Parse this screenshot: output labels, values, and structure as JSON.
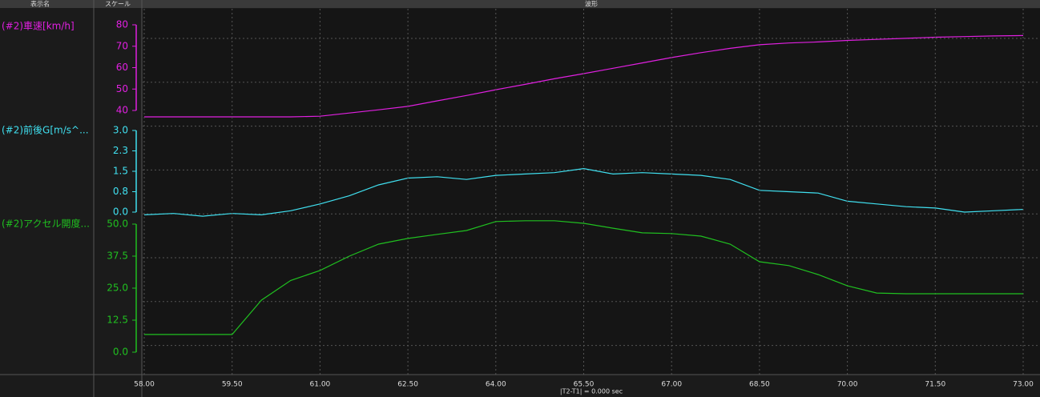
{
  "header": {
    "columns": [
      "表示名",
      "スケール",
      "波形"
    ]
  },
  "footer": {
    "delta": "|T2-T1| = 0.000  sec"
  },
  "chart_data": [
    {
      "type": "line",
      "x": [
        58,
        58.5,
        59,
        59.5,
        60,
        60.5,
        61,
        61.5,
        62,
        62.5,
        63,
        63.5,
        64,
        64.5,
        65,
        65.5,
        66,
        66.5,
        67,
        67.5,
        68,
        68.5,
        69,
        69.5,
        70,
        70.5,
        71,
        71.5,
        72,
        72.5,
        73
      ],
      "xlim": [
        58,
        73
      ],
      "series": [
        {
          "name": "(#2)車速[km/h]",
          "color": "#e020e0",
          "values": [
            37,
            37,
            37,
            37,
            37,
            37,
            37.3,
            38.8,
            40.3,
            41.9,
            44.5,
            47,
            49.7,
            52.2,
            54.8,
            57.2,
            59.7,
            62.2,
            64.7,
            67,
            69,
            70.7,
            71.5,
            72,
            72.7,
            73.2,
            73.7,
            74.2,
            74.5,
            74.8,
            75
          ]
        }
      ],
      "ylim": [
        40,
        80
      ],
      "yticks": [
        40,
        50,
        60,
        70,
        80
      ]
    },
    {
      "type": "line",
      "x": [
        58,
        58.5,
        59,
        59.5,
        60,
        60.5,
        61,
        61.5,
        62,
        62.5,
        63,
        63.5,
        64,
        64.5,
        65,
        65.5,
        66,
        66.5,
        67,
        67.5,
        68,
        68.5,
        69,
        69.5,
        70,
        70.5,
        71,
        71.5,
        72,
        72.5,
        73
      ],
      "xlim": [
        58,
        73
      ],
      "series": [
        {
          "name": "(#2)前後G[m/s^...",
          "color": "#40e0f0",
          "values": [
            -0.1,
            -0.05,
            -0.15,
            -0.05,
            -0.1,
            0.05,
            0.3,
            0.6,
            1.0,
            1.25,
            1.3,
            1.2,
            1.35,
            1.4,
            1.45,
            1.6,
            1.4,
            1.45,
            1.4,
            1.35,
            1.2,
            0.8,
            0.75,
            0.7,
            0.4,
            0.3,
            0.2,
            0.15,
            0,
            0.05,
            0.1
          ]
        }
      ],
      "ylim": [
        0,
        3
      ],
      "yticks": [
        {
          "value": 0,
          "label": "0.0"
        },
        {
          "value": 0.75,
          "label": "0.8"
        },
        {
          "value": 1.5,
          "label": "1.5"
        },
        {
          "value": 2.25,
          "label": "2.3"
        },
        {
          "value": 3,
          "label": "3.0"
        }
      ]
    },
    {
      "type": "line",
      "x": [
        58,
        58.5,
        59,
        59.5,
        60,
        60.5,
        61,
        61.5,
        62,
        62.5,
        63,
        63.5,
        64,
        64.5,
        65,
        65.5,
        66,
        66.5,
        67,
        67.5,
        68,
        68.5,
        69,
        69.5,
        70,
        70.5,
        71,
        71.5,
        72,
        72.5,
        73
      ],
      "xlim": [
        58,
        73
      ],
      "xticks": [
        {
          "value": 58,
          "label": "58.00"
        },
        {
          "value": 59.5,
          "label": "59.50"
        },
        {
          "value": 61,
          "label": "61.00"
        },
        {
          "value": 62.5,
          "label": "62.50"
        },
        {
          "value": 64,
          "label": "64.00"
        },
        {
          "value": 65.5,
          "label": "65.50"
        },
        {
          "value": 67,
          "label": "67.00"
        },
        {
          "value": 68.5,
          "label": "68.50"
        },
        {
          "value": 70,
          "label": "70.00"
        },
        {
          "value": 71.5,
          "label": "71.50"
        },
        {
          "value": 73,
          "label": "73.00"
        }
      ],
      "series": [
        {
          "name": "(#2)アクセル開度...",
          "color": "#20c020",
          "values": [
            6.9,
            6.9,
            6.9,
            6.9,
            20.3,
            28,
            31.9,
            37.5,
            42.2,
            44.4,
            46,
            47.5,
            51,
            51.3,
            51.3,
            50.3,
            48.4,
            46.6,
            46.3,
            45.3,
            42.2,
            35.3,
            33.8,
            30.3,
            25.9,
            23.1,
            22.8,
            22.8,
            22.8,
            22.8,
            22.8
          ]
        }
      ],
      "ylim": [
        0,
        50
      ],
      "yticks": [
        {
          "value": 0,
          "label": "0.0"
        },
        {
          "value": 12.5,
          "label": "12.5"
        },
        {
          "value": 25,
          "label": "25.0"
        },
        {
          "value": 37.5,
          "label": "37.5"
        },
        {
          "value": 50,
          "label": "50.0"
        }
      ]
    }
  ]
}
